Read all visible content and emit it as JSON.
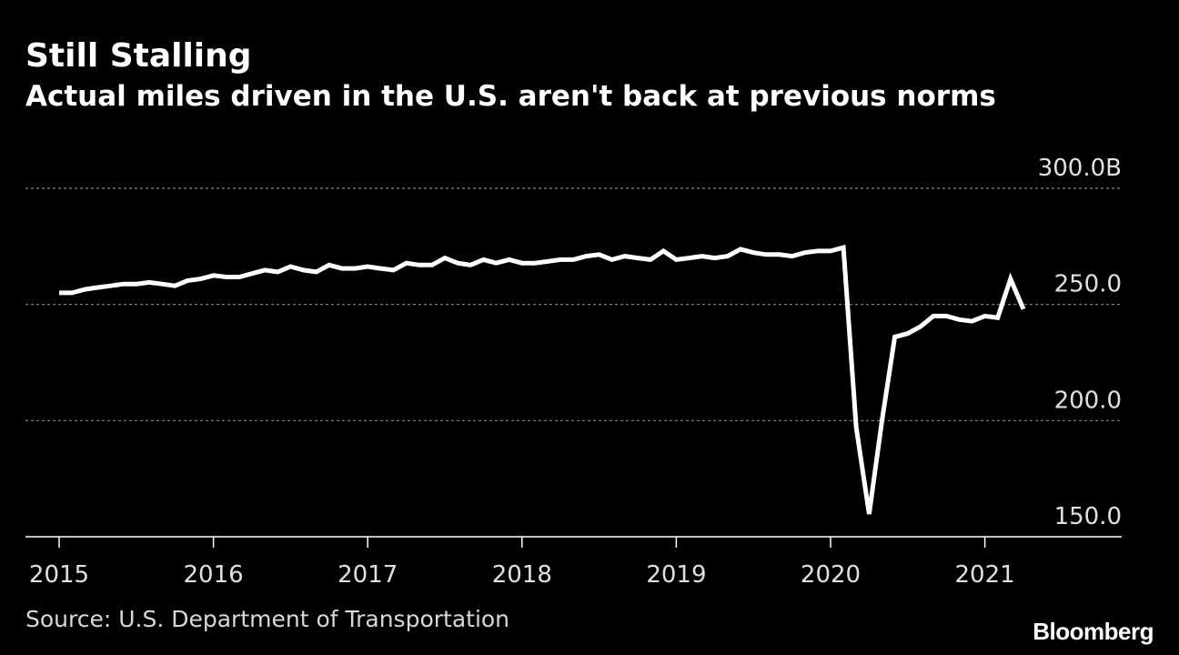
{
  "chart_data": {
    "type": "line",
    "title": "Still Stalling",
    "subtitle": "Actual miles driven in the U.S. aren't back at previous norms",
    "source": "Source: U.S. Department of Transportation",
    "brand": "Bloomberg",
    "xlabel": "",
    "ylabel": "",
    "grid": true,
    "x_start": 2015.0,
    "x_step": 0.08333,
    "xlim": [
      2014.8,
      2021.9
    ],
    "ylim": [
      150,
      300
    ],
    "y_ticks": [
      {
        "value": 150,
        "label": "150.0"
      },
      {
        "value": 200,
        "label": "200.0"
      },
      {
        "value": 250,
        "label": "250.0"
      },
      {
        "value": 300,
        "label": "300.0B"
      }
    ],
    "x_ticks": [
      {
        "value": 2015,
        "label": "2015"
      },
      {
        "value": 2016,
        "label": "2016"
      },
      {
        "value": 2017,
        "label": "2017"
      },
      {
        "value": 2018,
        "label": "2018"
      },
      {
        "value": 2019,
        "label": "2019"
      },
      {
        "value": 2020,
        "label": "2020"
      },
      {
        "value": 2021,
        "label": "2021"
      }
    ],
    "series": [
      {
        "name": "Actual miles driven",
        "color": "#ffffff",
        "values": [
          255.0,
          255.0,
          256.5,
          257.3,
          258.0,
          258.8,
          258.8,
          259.5,
          258.8,
          258.0,
          260.3,
          261.0,
          262.5,
          261.8,
          261.8,
          263.3,
          264.8,
          264.0,
          266.3,
          264.8,
          264.0,
          267.0,
          265.5,
          265.5,
          266.3,
          265.5,
          264.8,
          267.8,
          267.0,
          267.0,
          270.0,
          267.8,
          267.0,
          269.3,
          267.8,
          269.3,
          267.8,
          267.8,
          268.5,
          269.3,
          269.3,
          270.8,
          271.5,
          269.3,
          270.8,
          270.0,
          269.3,
          273.0,
          269.3,
          270.0,
          270.8,
          270.0,
          270.8,
          273.8,
          272.3,
          271.5,
          271.5,
          270.8,
          272.3,
          273.0,
          273.0,
          274.5,
          197.0,
          159.8,
          200.0,
          236.0,
          237.5,
          240.5,
          245.0,
          245.0,
          243.5,
          242.8,
          245.0,
          244.3,
          261.0,
          248.0
        ]
      }
    ]
  }
}
